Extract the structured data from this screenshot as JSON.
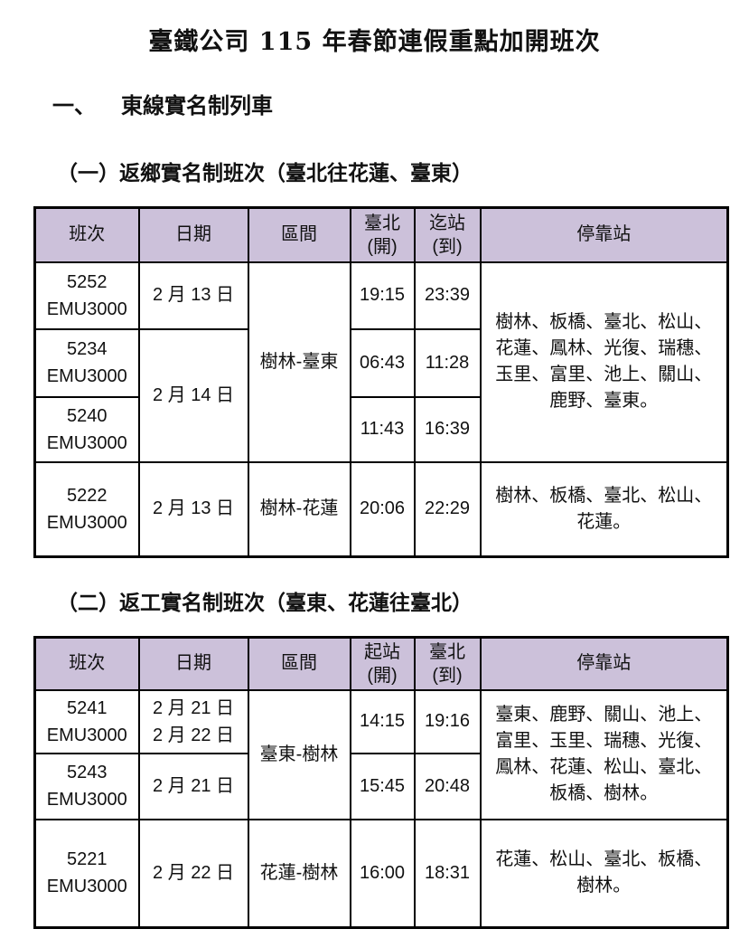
{
  "document": {
    "title": "臺鐵公司 115 年春節連假重點加開班次",
    "section": {
      "number": "一、",
      "label": "東線實名制列車"
    }
  },
  "colors": {
    "header_bg": "#ccc1da",
    "border": "#000000",
    "text": "#111111"
  },
  "tables": [
    {
      "caption": "（一）返鄉實名制班次（臺北往花蓮、臺東）",
      "headers": {
        "train": "班次",
        "date": "日期",
        "section": "區間",
        "dep_line1": "臺北",
        "dep_line2": "(開)",
        "arr_line1": "迄站",
        "arr_line2": "(到)",
        "stops": "停靠站"
      },
      "rows": [
        {
          "no": "5252",
          "model": "EMU3000",
          "date": "2 月 13 日",
          "section": "樹林-臺東",
          "dep": "19:15",
          "arr": "23:39",
          "stops": "樹林、板橋、臺北、松山、\n花蓮、鳳林、光復、瑞穗、\n玉里、富里、池上、關山、\n鹿野、臺東。"
        },
        {
          "no": "5234",
          "model": "EMU3000",
          "date": "2 月 14 日",
          "dep": "06:43",
          "arr": "11:28"
        },
        {
          "no": "5240",
          "model": "EMU3000",
          "dep": "11:43",
          "arr": "16:39"
        },
        {
          "no": "5222",
          "model": "EMU3000",
          "date": "2 月 13 日",
          "section": "樹林-花蓮",
          "dep": "20:06",
          "arr": "22:29",
          "stops": "樹林、板橋、臺北、松山、\n花蓮。"
        }
      ]
    },
    {
      "caption": "（二）返工實名制班次（臺東、花蓮往臺北）",
      "headers": {
        "train": "班次",
        "date": "日期",
        "section": "區間",
        "dep_line1": "起站",
        "dep_line2": "(開)",
        "arr_line1": "臺北",
        "arr_line2": "(到)",
        "stops": "停靠站"
      },
      "rows": [
        {
          "no": "5241",
          "model": "EMU3000",
          "date": "2 月 21 日",
          "date2": "2 月 22 日",
          "section": "臺東-樹林",
          "dep": "14:15",
          "arr": "19:16",
          "stops": "臺東、鹿野、關山、池上、\n富里、玉里、瑞穗、光復、\n鳳林、花蓮、松山、臺北、\n板橋、樹林。"
        },
        {
          "no": "5243",
          "model": "EMU3000",
          "date": "2 月 21 日",
          "dep": "15:45",
          "arr": "20:48"
        },
        {
          "no": "5221",
          "model": "EMU3000",
          "date": "2 月 22 日",
          "section": "花蓮-樹林",
          "dep": "16:00",
          "arr": "18:31",
          "stops": "花蓮、松山、臺北、板橋、\n樹林。"
        }
      ]
    }
  ]
}
